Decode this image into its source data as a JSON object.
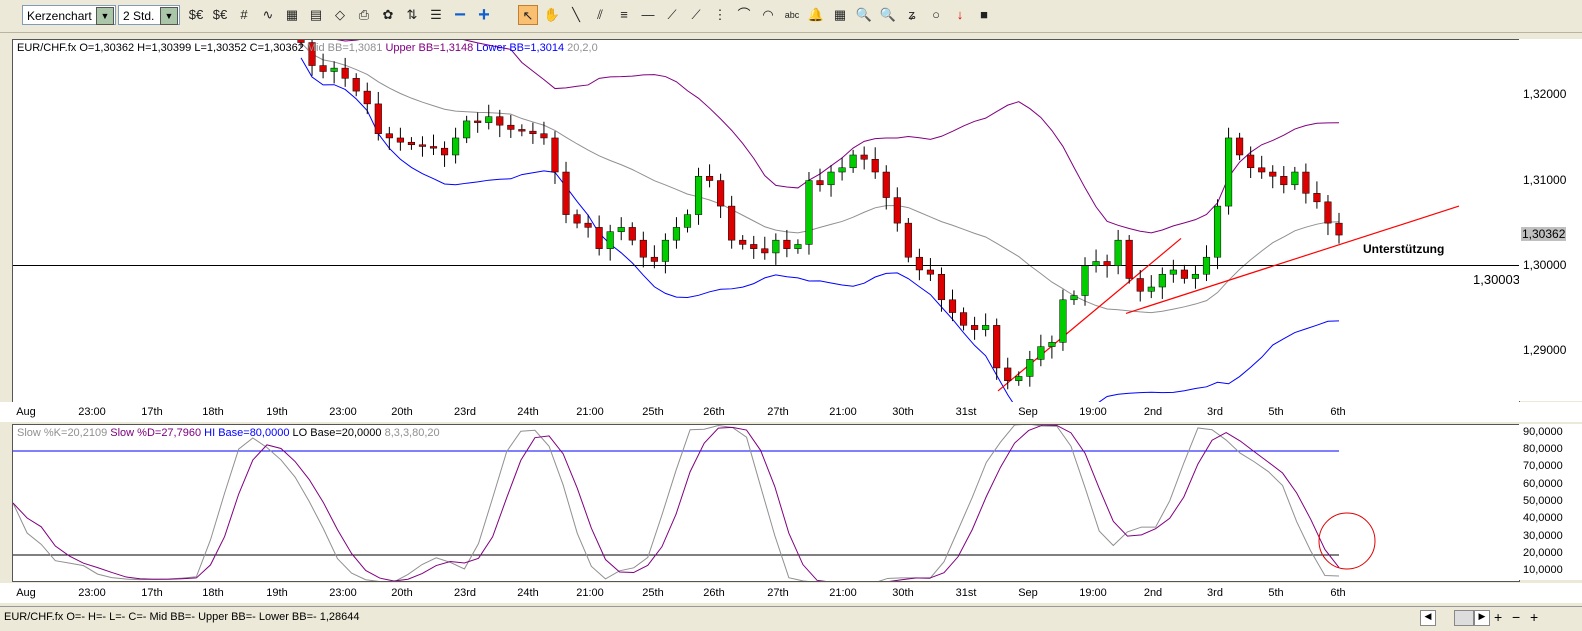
{
  "toolbar": {
    "chart_type": "Kerzenchart",
    "timeframe": "2 Std.",
    "icons": [
      "currency-icon",
      "currency-alt-icon",
      "grid-icon",
      "indicator-icon",
      "calculator-icon",
      "chart-window-icon",
      "eraser-icon",
      "print-icon",
      "color-icon",
      "layers-icon",
      "template-icon",
      "zoom-out-icon",
      "zoom-in-icon",
      "pointer-icon",
      "hand-icon",
      "line-icon",
      "parallel-icon",
      "fibonacci-icon",
      "horizontal-line-icon",
      "fan-icon",
      "gann-icon",
      "vertical-lines-icon",
      "cycle-icon",
      "arc-icon",
      "text-icon",
      "alarm-icon",
      "calc-icon",
      "zoom-icon",
      "zoom-area-icon",
      "freehand-icon",
      "circle-icon",
      "sell-arrow-icon",
      "color-palette-icon"
    ],
    "zoom_out": "−",
    "zoom_in": "+",
    "text_tool": "abc"
  },
  "main_chart": {
    "symbol_info": "EUR/CHF.fx O=1,30362 H=1,30399 L=1,30352 C=1,30362",
    "mid_bb": "Mid BB=1,3081",
    "upper_bb": "Upper BB=1,3148",
    "lower_bb": "Lower BB=1,3014",
    "bb_params": "20,2,0",
    "annotation": "Unterstützung",
    "line_value": "1,30003",
    "current_price": "1,30362",
    "colors": {
      "up": "#00cc00",
      "down": "#dd0000",
      "mid": "#909090",
      "upper": "#800080",
      "lower": "#0000ff",
      "trend": "#ff0000"
    }
  },
  "chart_data": [
    {
      "type": "candlestick",
      "y_ticks": [
        "1,32000",
        "1,31000",
        "1,30000",
        "1,29000"
      ],
      "ylim": [
        1.284,
        1.3265
      ],
      "x_labels": [
        "Aug",
        "23:00",
        "17th",
        "18th",
        "19th",
        "23:00",
        "20th",
        "23rd",
        "24th",
        "21:00",
        "25th",
        "26th",
        "27th",
        "21:00",
        "30th",
        "31st",
        "Sep",
        "19:00",
        "2nd",
        "3rd",
        "5th",
        "6th"
      ],
      "close": [
        1.3262,
        1.3235,
        1.3228,
        1.3232,
        1.322,
        1.3205,
        1.319,
        1.3155,
        1.315,
        1.3145,
        1.3142,
        1.314,
        1.3138,
        1.313,
        1.315,
        1.317,
        1.3168,
        1.3175,
        1.3165,
        1.316,
        1.3158,
        1.3155,
        1.315,
        1.311,
        1.306,
        1.305,
        1.3045,
        1.302,
        1.304,
        1.3045,
        1.303,
        1.301,
        1.3005,
        1.303,
        1.3045,
        1.306,
        1.3105,
        1.31,
        1.307,
        1.303,
        1.3025,
        1.302,
        1.3015,
        1.303,
        1.302,
        1.3025,
        1.31,
        1.3095,
        1.311,
        1.3115,
        1.313,
        1.3125,
        1.311,
        1.308,
        1.305,
        1.301,
        1.2995,
        1.299,
        1.296,
        1.2945,
        1.293,
        1.2925,
        1.293,
        1.288,
        1.2865,
        1.287,
        1.289,
        1.2905,
        1.291,
        1.296,
        1.2965,
        1.3,
        1.3005,
        1.3,
        1.303,
        1.2985,
        1.297,
        1.2975,
        1.299,
        1.2995,
        1.2985,
        1.299,
        1.301,
        1.307,
        1.315,
        1.313,
        1.3115,
        1.311,
        1.3105,
        1.3095,
        1.311,
        1.3085,
        1.3075,
        1.305,
        1.3036
      ],
      "horizontal_line": 1.30003,
      "trend_lines": [
        {
          "from": 1.2853,
          "to": 1.3032
        },
        {
          "from": 1.2944,
          "to": 1.307
        }
      ]
    },
    {
      "type": "line",
      "y_ticks": [
        "90,0000",
        "80,0000",
        "70,0000",
        "60,0000",
        "50,0000",
        "40,0000",
        "30,0000",
        "20,0000",
        "10,0000"
      ],
      "ylim": [
        5,
        95
      ],
      "hi_base": 80,
      "lo_base": 20
    }
  ],
  "stoch": {
    "k": "Slow %K=20,2109",
    "d": "Slow %D=27,7960",
    "hi": "HI Base=80,0000",
    "lo": "LO Base=20,0000",
    "params": "8,3,3,80,20"
  },
  "status": {
    "text": "EUR/CHF.fx O=- H=- L=- C=-  Mid BB=- Upper BB=- Lower BB=-   1,28644"
  }
}
